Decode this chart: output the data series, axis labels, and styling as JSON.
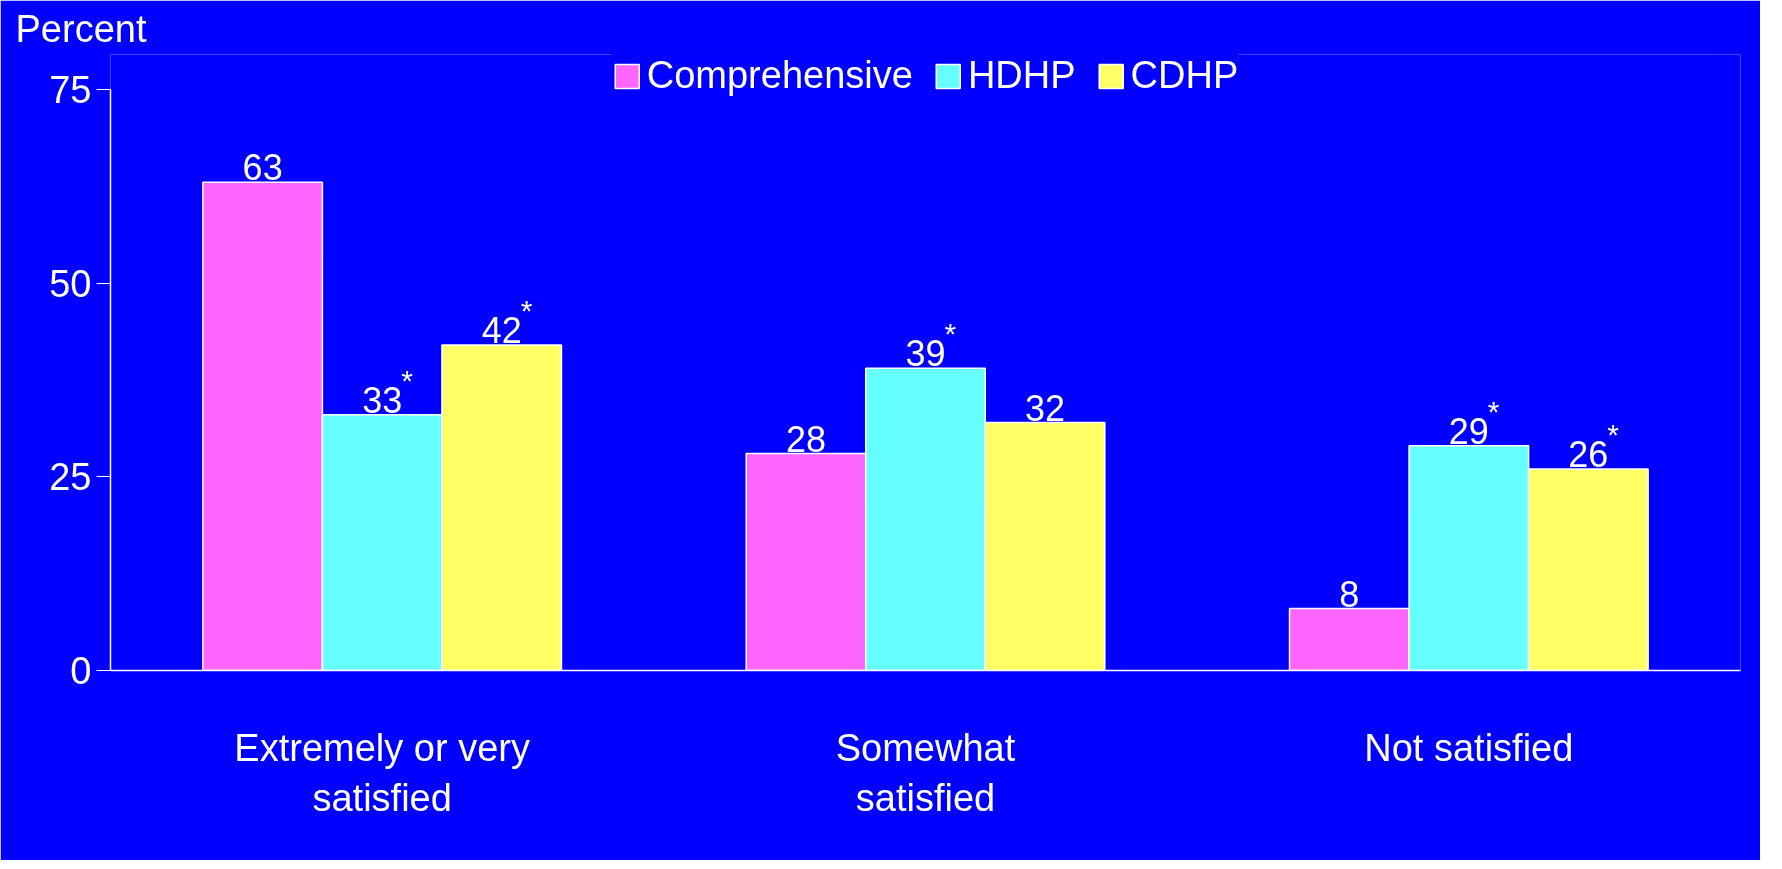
{
  "chart_data": {
    "type": "bar",
    "ylabel": "Percent",
    "categories": [
      "Extremely or very satisfied",
      "Somewhat satisfied",
      "Not satisfied"
    ],
    "series": [
      {
        "name": "Comprehensive",
        "color": "#ff66ff",
        "values": [
          63,
          28,
          8
        ],
        "value_labels": [
          "63",
          "28",
          "8"
        ]
      },
      {
        "name": "HDHP",
        "color": "#66ffff",
        "values": [
          33,
          39,
          29
        ],
        "value_labels": [
          "33$^{*}$",
          "39$^{*}$",
          "29$^{*}$"
        ]
      },
      {
        "name": "CDHP",
        "color": "#ffff66",
        "values": [
          42,
          32,
          26
        ],
        "value_labels": [
          "42$^{*}$",
          "32",
          "26$^{*}$"
        ]
      }
    ],
    "ylim": [
      0,
      75
    ],
    "yticks": [
      0,
      25,
      50,
      75
    ],
    "grid": false,
    "legend": "top"
  }
}
